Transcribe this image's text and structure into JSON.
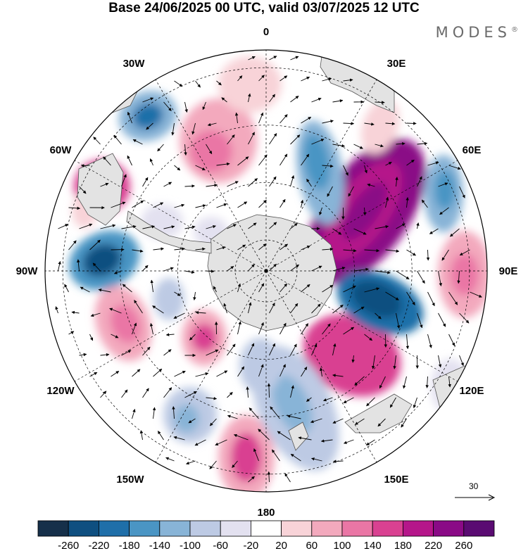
{
  "title": "Base 24/06/2025 00 UTC, valid 03/07/2025 12 UTC",
  "brand": "MODES",
  "brand_mark": "®",
  "longitude_labels": [
    "0",
    "30E",
    "60E",
    "90E",
    "120E",
    "150E",
    "180",
    "150W",
    "120W",
    "90W",
    "60W",
    "30W"
  ],
  "vector_reference": "30",
  "colorbar": {
    "ticks": [
      "-260",
      "-220",
      "-180",
      "-140",
      "-100",
      "-60",
      "-20",
      "20",
      "60",
      "100",
      "140",
      "180",
      "220",
      "260"
    ],
    "colors": [
      "#16304a",
      "#0f4f80",
      "#1f6fa9",
      "#4a95c4",
      "#88b4d7",
      "#bdcae4",
      "#e3e1f0",
      "#ffffff",
      "#f8d3d8",
      "#f3a9bd",
      "#ea76a5",
      "#d94191",
      "#b5168a",
      "#8a0a86",
      "#5a0b72"
    ]
  },
  "map_colors": {
    "land": "#e3e3e3",
    "coast": "#555555"
  }
}
